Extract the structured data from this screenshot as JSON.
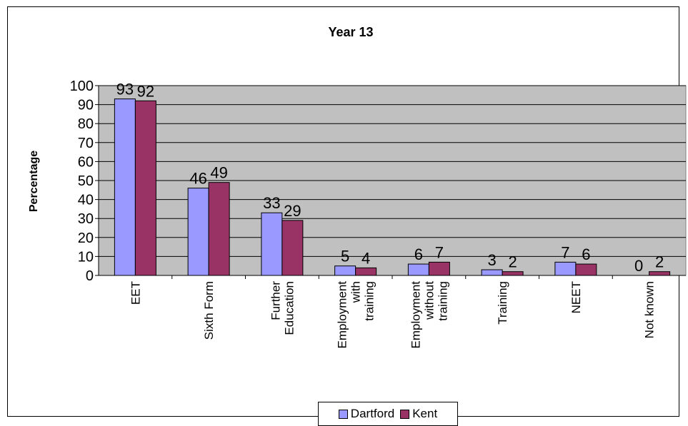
{
  "chart_data": {
    "type": "bar",
    "title": "Year 13",
    "xlabel": "",
    "ylabel": "Percentage",
    "ylim": [
      0,
      100
    ],
    "yticks": [
      0,
      10,
      20,
      30,
      40,
      50,
      60,
      70,
      80,
      90,
      100
    ],
    "grid": true,
    "legend_position": "bottom",
    "categories": [
      [
        "EET"
      ],
      [
        "Sixth Form"
      ],
      [
        "Further",
        "Education"
      ],
      [
        "Employment",
        "with",
        "training"
      ],
      [
        "Employment",
        "without",
        "training"
      ],
      [
        "Training"
      ],
      [
        "NEET"
      ],
      [
        "Not known"
      ]
    ],
    "series": [
      {
        "name": "Dartford",
        "color": "#9999ff",
        "values": [
          93,
          46,
          33,
          5,
          6,
          3,
          7,
          0
        ]
      },
      {
        "name": "Kent",
        "color": "#993366",
        "values": [
          92,
          49,
          29,
          4,
          7,
          2,
          6,
          2
        ]
      }
    ],
    "plot_background": "#c0c0c0"
  }
}
